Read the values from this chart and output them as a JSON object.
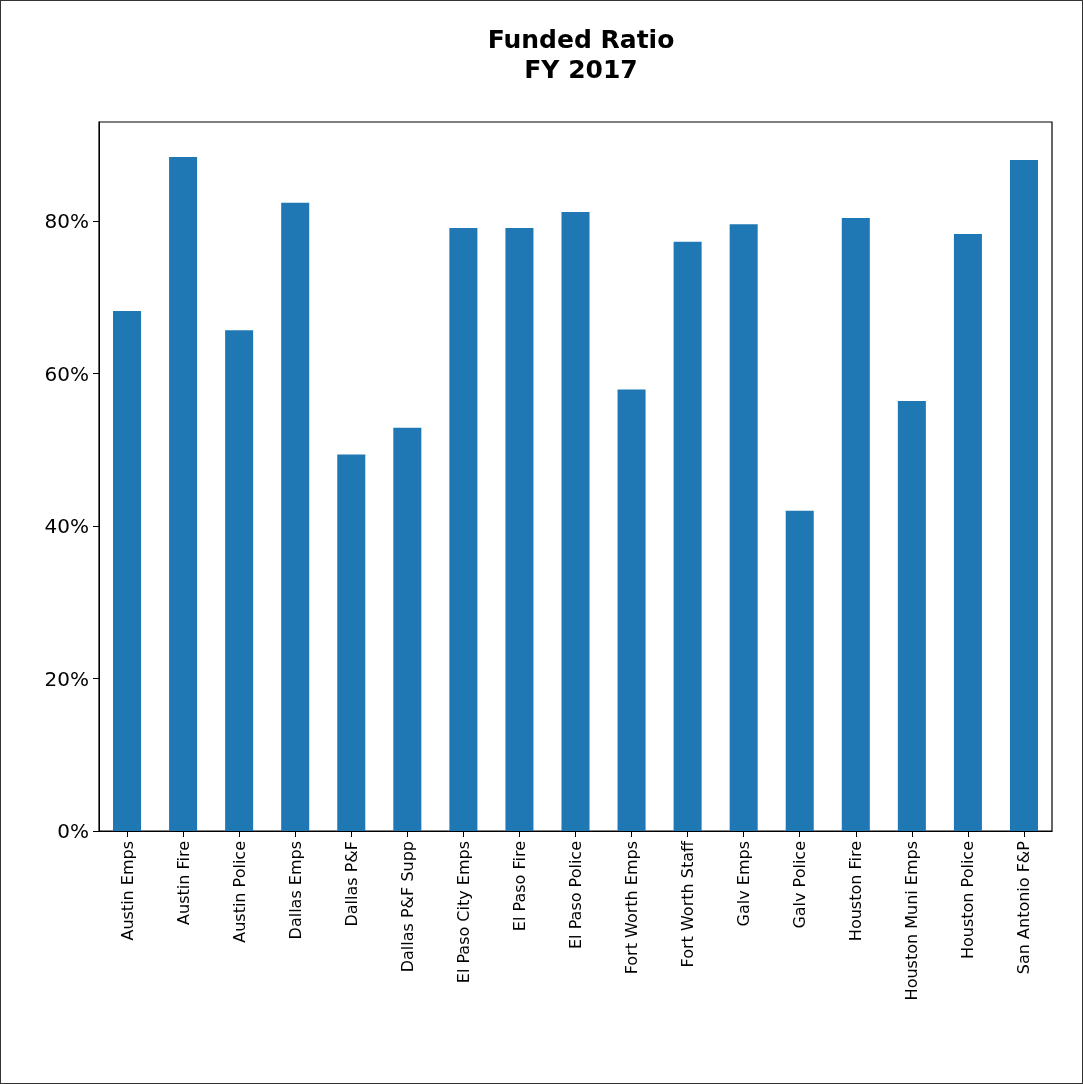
{
  "chart_data": {
    "type": "bar",
    "title": "Funded Ratio\nFY 2017",
    "categories": [
      "Austin Emps",
      "Austin Fire",
      "Austin Police",
      "Dallas Emps",
      "Dallas P&F",
      "Dallas P&F Supp",
      "El Paso City Emps",
      "El Paso Fire",
      "El Paso Police",
      "Fort Worth Emps",
      "Fort Worth Staff",
      "Galv Emps",
      "Galv Police",
      "Houston Fire",
      "Houston Muni Emps",
      "Houston Police",
      "San Antonio F&P"
    ],
    "values": [
      68.2,
      88.4,
      65.7,
      82.4,
      49.4,
      52.9,
      79.1,
      79.1,
      81.2,
      57.9,
      77.3,
      79.6,
      42.0,
      80.4,
      56.4,
      78.3,
      88.0
    ],
    "color": "#1f77b4",
    "ylim": [
      0,
      93
    ],
    "yticks": [
      {
        "value": 0,
        "label": "0%"
      },
      {
        "value": 20,
        "label": "20%"
      },
      {
        "value": 40,
        "label": "40%"
      },
      {
        "value": 60,
        "label": "60%"
      },
      {
        "value": 80,
        "label": "80%"
      }
    ],
    "grid": false
  }
}
